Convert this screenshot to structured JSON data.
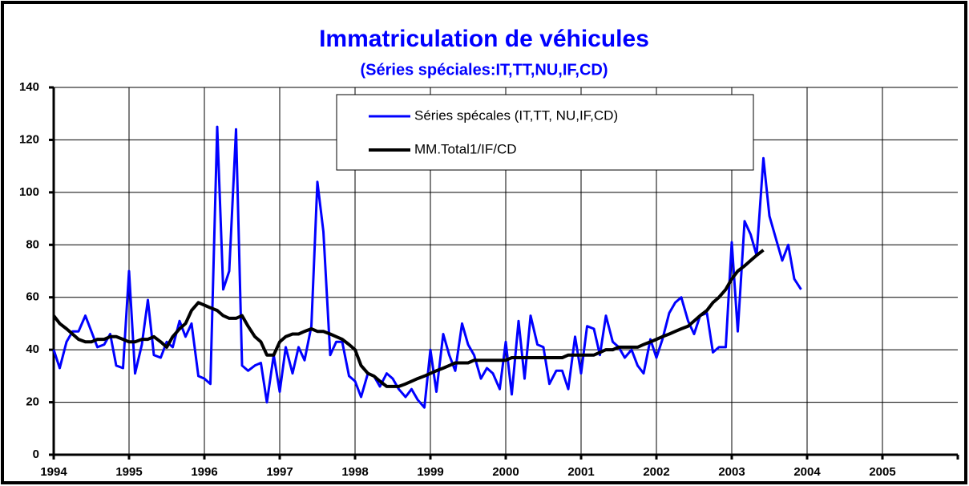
{
  "chart_data": {
    "type": "line",
    "title": "Immatriculation de véhicules",
    "subtitle": "(Séries spéciales:IT,TT,NU,IF,CD)",
    "x": [
      1994,
      1994.08,
      1994.17,
      1994.25,
      1994.33,
      1994.42,
      1994.5,
      1994.58,
      1994.67,
      1994.75,
      1994.83,
      1994.92,
      1995,
      1995.08,
      1995.17,
      1995.25,
      1995.33,
      1995.42,
      1995.5,
      1995.58,
      1995.67,
      1995.75,
      1995.83,
      1995.92,
      1996,
      1996.08,
      1996.17,
      1996.25,
      1996.33,
      1996.42,
      1996.5,
      1996.58,
      1996.67,
      1996.75,
      1996.83,
      1996.92,
      1997,
      1997.08,
      1997.17,
      1997.25,
      1997.33,
      1997.42,
      1997.5,
      1997.58,
      1997.67,
      1997.75,
      1997.83,
      1997.92,
      1998,
      1998.08,
      1998.17,
      1998.25,
      1998.33,
      1998.42,
      1998.5,
      1998.58,
      1998.67,
      1998.75,
      1998.83,
      1998.92,
      1999,
      1999.08,
      1999.17,
      1999.25,
      1999.33,
      1999.42,
      1999.5,
      1999.58,
      1999.67,
      1999.75,
      1999.83,
      1999.92,
      2000,
      2000.08,
      2000.17,
      2000.25,
      2000.33,
      2000.42,
      2000.5,
      2000.58,
      2000.67,
      2000.75,
      2000.83,
      2000.92,
      2001,
      2001.08,
      2001.17,
      2001.25,
      2001.33,
      2001.42,
      2001.5,
      2001.58,
      2001.67,
      2001.75,
      2001.83,
      2001.92,
      2002,
      2002.08,
      2002.17,
      2002.25,
      2002.33,
      2002.42,
      2002.5,
      2002.58,
      2002.67,
      2002.75,
      2002.83,
      2002.92,
      2003,
      2003.08,
      2003.17,
      2003.25,
      2003.33,
      2003.42,
      2003.5,
      2003.58,
      2003.67,
      2003.75,
      2003.83,
      2003.92
    ],
    "series": [
      {
        "name": "Séries spécales (IT,TT, NU,IF,CD)",
        "color": "#0000ff",
        "width": 3,
        "values": [
          40,
          33,
          43,
          47,
          47,
          53,
          47,
          41,
          42,
          46,
          34,
          33,
          70,
          31,
          42,
          59,
          38,
          37,
          43,
          41,
          51,
          45,
          50,
          30,
          29,
          27,
          125,
          63,
          70,
          124,
          34,
          32,
          34,
          35,
          20,
          38,
          24,
          41,
          31,
          41,
          36,
          49,
          104,
          85,
          38,
          43,
          43,
          30,
          28,
          22,
          31,
          30,
          26,
          31,
          29,
          25,
          22,
          25,
          21,
          18,
          40,
          24,
          46,
          38,
          32,
          50,
          42,
          38,
          29,
          33,
          31,
          25,
          43,
          23,
          51,
          29,
          53,
          42,
          41,
          27,
          32,
          32,
          25,
          45,
          31,
          49,
          48,
          38,
          53,
          43,
          41,
          37,
          40,
          34,
          31,
          44,
          37,
          44,
          54,
          58,
          60,
          51,
          46,
          53,
          54,
          39,
          41,
          41,
          81,
          47,
          89,
          84,
          76,
          113,
          91,
          83,
          74,
          80,
          67,
          63
        ]
      },
      {
        "name": "MM.Total1/IF/CD",
        "color": "#000000",
        "width": 4,
        "values": [
          53,
          50,
          48,
          46,
          44,
          43,
          43,
          44,
          44,
          45,
          45,
          44,
          43,
          43,
          44,
          44,
          45,
          43,
          41,
          45,
          48,
          50,
          55,
          58,
          57,
          56,
          55,
          53,
          52,
          52,
          53,
          49,
          45,
          43,
          38,
          38,
          43,
          45,
          46,
          46,
          47,
          48,
          47,
          47,
          46,
          45,
          44,
          42,
          40,
          34,
          31,
          30,
          28,
          26,
          26,
          26,
          27,
          28,
          29,
          30,
          31,
          32,
          33,
          34,
          35,
          35,
          35,
          36,
          36,
          36,
          36,
          36,
          36,
          37,
          37,
          37,
          37,
          37,
          37,
          37,
          37,
          37,
          38,
          38,
          38,
          38,
          38,
          39,
          40,
          40,
          41,
          41,
          41,
          41,
          42,
          43,
          44,
          45,
          46,
          47,
          48,
          49,
          51,
          53,
          55,
          58,
          60,
          63,
          67,
          70,
          72,
          74,
          76,
          78,
          null,
          null,
          null,
          null,
          null,
          null
        ]
      }
    ],
    "xlim": [
      1994,
      2006
    ],
    "xticks": [
      1994,
      1995,
      1996,
      1997,
      1998,
      1999,
      2000,
      2001,
      2002,
      2003,
      2004,
      2005
    ],
    "ylim": [
      0,
      140
    ],
    "yticks": [
      0,
      20,
      40,
      60,
      80,
      100,
      120,
      140
    ],
    "grid": true,
    "title_color": "#0000ff"
  }
}
